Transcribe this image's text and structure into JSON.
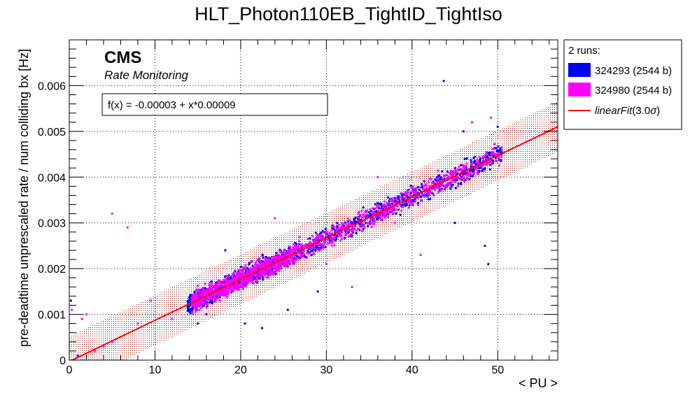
{
  "chart_data": {
    "type": "scatter",
    "title": "HLT_Photon110EB_TightID_TightIso",
    "xlabel": "< PU >",
    "ylabel": "pre-deadtime unprescaled rate / num colliding bx [Hz]",
    "xlim": [
      0,
      57
    ],
    "ylim": [
      0,
      0.007
    ],
    "x_ticks": [
      0,
      10,
      20,
      30,
      40,
      50
    ],
    "x_tick_labels": [
      "0",
      "10",
      "20",
      "30",
      "40",
      "50"
    ],
    "y_ticks": [
      0,
      0.001,
      0.002,
      0.003,
      0.004,
      0.005,
      0.006
    ],
    "y_tick_labels": [
      "0",
      "0.001",
      "0.002",
      "0.003",
      "0.004",
      "0.005",
      "0.006"
    ],
    "grid": true,
    "legend_position": "outside-top-right",
    "experiment_label": "CMS",
    "subtitle": "Rate Monitoring",
    "fit": {
      "label": "f(x) = -0.00003 + x*0.00009",
      "intercept": -3e-05,
      "slope": 9e-05,
      "band_sigma": 3.0,
      "band_halfwidth": 0.00055,
      "color": "#ff0000",
      "legend_label_name": "linearFit",
      "legend_label_args": "(3.0",
      "legend_label_symbol": "σ",
      "legend_label_close": ")"
    },
    "legend_header": "2 runs:",
    "series": [
      {
        "name": "324293 (2544 b)",
        "color": "#0000ff",
        "pu_range": [
          13.8,
          50.5
        ],
        "points": [
          [
            0.2,
            0.0013
          ],
          [
            1.0,
            0.0001
          ],
          [
            14.0,
            0.0011
          ],
          [
            14.1,
            0.0014
          ],
          [
            14.3,
            0.0012
          ],
          [
            18.2,
            0.0024
          ],
          [
            20.5,
            0.0008
          ],
          [
            22.5,
            0.0007
          ],
          [
            25.5,
            0.0011
          ],
          [
            29.0,
            0.0015
          ],
          [
            43.7,
            0.0061
          ],
          [
            48.5,
            0.0025
          ],
          [
            48.9,
            0.0021
          ],
          [
            40.0,
            0.0035
          ],
          [
            45.0,
            0.003
          ],
          [
            46.0,
            0.005
          ],
          [
            50.0,
            0.0051
          ],
          [
            17.0,
            0.0013
          ],
          [
            16.0,
            0.001
          ],
          [
            15.0,
            0.0008
          ]
        ]
      },
      {
        "name": "324980 (2544 b)",
        "color": "#ff00ff",
        "pu_range": [
          14.3,
          50.5
        ],
        "points": [
          [
            0.3,
            0.0011
          ],
          [
            1.5,
            0.0009
          ],
          [
            2.0,
            0.001
          ],
          [
            3.0,
            0.0002
          ],
          [
            4.0,
            0.0003
          ],
          [
            5.0,
            0.0004
          ],
          [
            5.0,
            0.0032
          ],
          [
            6.8,
            0.0029
          ],
          [
            8.0,
            0.0008
          ],
          [
            9.5,
            0.0013
          ],
          [
            12.0,
            0.0009
          ],
          [
            17.5,
            0.0017
          ],
          [
            33.0,
            0.0016
          ],
          [
            36.0,
            0.004
          ],
          [
            41.0,
            0.0023
          ],
          [
            47.0,
            0.0052
          ],
          [
            49.2,
            0.0053
          ],
          [
            24.0,
            0.0031
          ],
          [
            30.0,
            0.0021
          ],
          [
            38.0,
            0.003
          ]
        ]
      }
    ]
  }
}
